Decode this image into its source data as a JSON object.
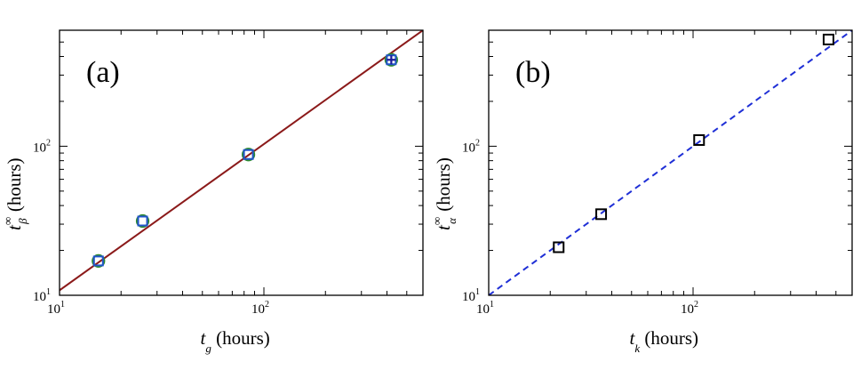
{
  "chart_data": [
    {
      "type": "scatter",
      "panel_label": "(a)",
      "x_scale": "log",
      "y_scale": "log",
      "xlim": [
        10,
        600
      ],
      "ylim": [
        10,
        600
      ],
      "xlabel": {
        "main": "t",
        "sub": "g",
        "rest": " (hours)"
      },
      "ylabel": {
        "main": "t",
        "sup": "∞",
        "sub": "β",
        "rest": " (hours)"
      },
      "xticks": [
        {
          "value": 10,
          "base": "10",
          "exp": "1"
        },
        {
          "value": 100,
          "base": "10",
          "exp": "2"
        }
      ],
      "yticks": [
        {
          "value": 10,
          "base": "10",
          "exp": "1"
        },
        {
          "value": 100,
          "base": "10",
          "exp": "2"
        }
      ],
      "series": [
        {
          "marker": "circle",
          "color": "#2e8b2e",
          "x": [
            15.5,
            25.5,
            84,
            420
          ],
          "y": [
            17,
            31.5,
            88,
            380
          ]
        },
        {
          "marker": "square",
          "color": "#2255cc",
          "x": [
            15.5,
            25.5,
            84,
            420
          ],
          "y": [
            17,
            31.5,
            88,
            380
          ]
        },
        {
          "marker": "plus",
          "color": "#1a1a99",
          "x": [
            420
          ],
          "y": [
            380
          ]
        }
      ],
      "fit_line": {
        "style": "solid",
        "color": "#8b1a1a",
        "x": [
          10,
          600
        ],
        "y": [
          10.8,
          600
        ]
      }
    },
    {
      "type": "scatter",
      "panel_label": "(b)",
      "x_scale": "log",
      "y_scale": "log",
      "xlim": [
        10,
        600
      ],
      "ylim": [
        10,
        600
      ],
      "xlabel": {
        "main": "t",
        "sub": "k",
        "rest": " (hours)"
      },
      "ylabel": {
        "main": "t",
        "sup": "∞",
        "sub": "α",
        "rest": " (hours)"
      },
      "xticks": [
        {
          "value": 10,
          "base": "10",
          "exp": "1"
        },
        {
          "value": 100,
          "base": "10",
          "exp": "2"
        }
      ],
      "yticks": [
        {
          "value": 10,
          "base": "10",
          "exp": "1"
        },
        {
          "value": 100,
          "base": "10",
          "exp": "2"
        }
      ],
      "series": [
        {
          "marker": "square",
          "color": "#000000",
          "x": [
            22,
            35.5,
            107,
            460
          ],
          "y": [
            21,
            35,
            110,
            520
          ]
        }
      ],
      "fit_line": {
        "style": "dashed",
        "color": "#1f2fd6",
        "x": [
          10,
          600
        ],
        "y": [
          10,
          600
        ]
      }
    }
  ]
}
